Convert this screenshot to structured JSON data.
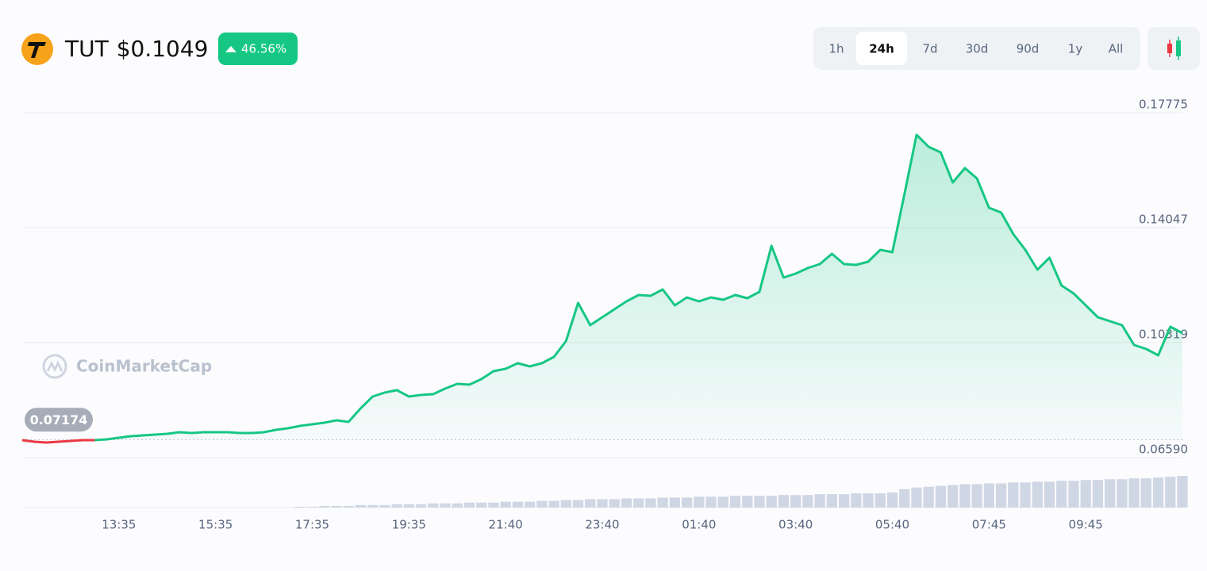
{
  "header": {
    "symbol": "TUT",
    "price": "$0.1049",
    "change": "46.56%",
    "ranges": [
      "1h",
      "24h",
      "7d",
      "30d",
      "90d",
      "1y",
      "All"
    ],
    "active_range": "24h"
  },
  "watermark": "CoinMarketCap",
  "chart_data": {
    "type": "line",
    "up_color": "#16c784",
    "down_color": "#ea3943",
    "baseline": 0.07174,
    "values": [
      0.07156,
      0.07104,
      0.07078,
      0.07104,
      0.0713,
      0.07156,
      0.07156,
      0.07181,
      0.07233,
      0.07284,
      0.0731,
      0.07336,
      0.07361,
      0.07413,
      0.07387,
      0.07413,
      0.07413,
      0.07413,
      0.07387,
      0.07387,
      0.07413,
      0.0749,
      0.07541,
      0.07618,
      0.0767,
      0.07721,
      0.07798,
      0.07747,
      0.08184,
      0.0857,
      0.08698,
      0.08775,
      0.0857,
      0.08621,
      0.08647,
      0.08827,
      0.08981,
      0.08955,
      0.09135,
      0.09392,
      0.0947,
      0.09649,
      0.09547,
      0.09649,
      0.09855,
      0.10369,
      0.11603,
      0.10884,
      0.11141,
      0.11398,
      0.11655,
      0.11861,
      0.11835,
      0.12041,
      0.11526,
      0.11783,
      0.11655,
      0.11783,
      0.11706,
      0.11861,
      0.11758,
      0.11963,
      0.13455,
      0.12426,
      0.12555,
      0.12735,
      0.12863,
      0.13197,
      0.12863,
      0.12838,
      0.1294,
      0.13326,
      0.13249,
      0.15126,
      0.17054,
      0.16668,
      0.16488,
      0.15511,
      0.15974,
      0.1564,
      0.14689,
      0.14534,
      0.1384,
      0.13326,
      0.12683,
      0.13069,
      0.12169,
      0.11912,
      0.11526,
      0.11141,
      0.11012,
      0.10884,
      0.10241,
      0.10112,
      0.09907,
      0.10832,
      0.10626
    ],
    "volume": [
      null,
      null,
      null,
      null,
      null,
      null,
      null,
      null,
      null,
      null,
      null,
      null,
      null,
      null,
      null,
      null,
      null,
      null,
      null,
      null,
      null,
      null,
      null,
      1,
      1,
      2,
      2,
      2,
      3,
      3,
      3,
      4,
      4,
      4,
      5,
      5,
      5,
      6,
      6,
      6,
      7,
      7,
      7,
      8,
      8,
      9,
      9,
      10,
      10,
      10,
      11,
      11,
      11,
      12,
      12,
      12,
      13,
      13,
      13,
      14,
      14,
      14,
      14,
      15,
      15,
      15,
      16,
      16,
      16,
      17,
      17,
      17,
      18,
      22,
      24,
      25,
      26,
      27,
      28,
      28,
      29,
      29,
      30,
      30,
      31,
      31,
      32,
      32,
      33,
      33,
      34,
      34,
      35,
      35,
      36,
      37,
      38
    ],
    "xlim": [
      0,
      96
    ],
    "xticks": [
      {
        "value": 8,
        "label": "13:35"
      },
      {
        "value": 16,
        "label": "15:35"
      },
      {
        "value": 24,
        "label": "17:35"
      },
      {
        "value": 32,
        "label": "19:35"
      },
      {
        "value": 40,
        "label": "21:40"
      },
      {
        "value": 48,
        "label": "23:40"
      },
      {
        "value": 56,
        "label": "01:40"
      },
      {
        "value": 64,
        "label": "03:40"
      },
      {
        "value": 72,
        "label": "05:40"
      },
      {
        "value": 80,
        "label": "07:45"
      },
      {
        "value": 88,
        "label": "09:45"
      }
    ],
    "ylim": [
      0.0659,
      0.17775
    ],
    "yticks": [
      {
        "value": 0.0659,
        "label": "0.06590"
      },
      0.10319,
      0.14047,
      0.17775
    ],
    "grid": true
  }
}
